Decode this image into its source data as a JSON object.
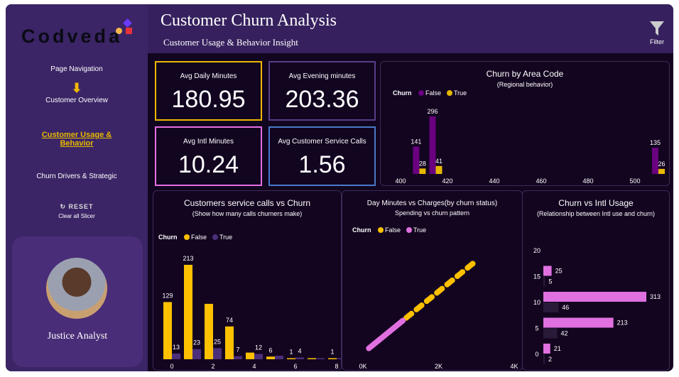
{
  "header": {
    "title": "Customer Churn Analysis",
    "subtitle": "Customer Usage & Behavior Insight",
    "filter_label": "Filter"
  },
  "sidebar": {
    "logo": "Codveda",
    "nav_heading": "Page Navigation",
    "items": [
      {
        "label": "Customer Overview"
      },
      {
        "label": "Customer Usage & Behavior",
        "active": true
      },
      {
        "label": "Churn Drivers & Strategic"
      }
    ],
    "reset_label": "RESET",
    "reset_caption": "Clear all Slicer",
    "profile_name": "Justice Analyst"
  },
  "kpis": [
    {
      "label": "Avg Daily Minutes",
      "value": "180.95",
      "color": "#f0b800"
    },
    {
      "label": "Avg Evening minutes",
      "value": "203.36",
      "color": "#5a3d8a"
    },
    {
      "label": "Avg Intl Minutes",
      "value": "10.24",
      "color": "#e36ee3"
    },
    {
      "label": "Avg Customer Service Calls",
      "value": "1.56",
      "color": "#4a7ac8"
    }
  ],
  "chart_data": [
    {
      "type": "bar",
      "title": "Churn by Area Code",
      "subtitle": "(Regional behavior)",
      "legend_title": "Churn",
      "legend": [
        "False",
        "True"
      ],
      "colors": [
        "#6a0080",
        "#e6b800"
      ],
      "xticks": [
        "400",
        "420",
        "440",
        "460",
        "480",
        "500"
      ],
      "xlim": [
        400,
        512
      ],
      "categories": [
        408,
        415,
        510
      ],
      "series": [
        {
          "name": "False",
          "values": [
            141,
            296,
            135
          ]
        },
        {
          "name": "True",
          "values": [
            28,
            41,
            26
          ]
        }
      ]
    },
    {
      "type": "bar",
      "title": "Customers service calls vs Churn",
      "subtitle": "(Show how many calls churners make)",
      "legend_title": "Churn",
      "legend": [
        "False",
        "True"
      ],
      "colors": [
        "#ffc000",
        "#4b2f7a"
      ],
      "xticks": [
        "0",
        "2",
        "4",
        "6",
        "8"
      ],
      "categories": [
        0,
        1,
        2,
        3,
        4,
        5,
        6,
        7,
        8
      ],
      "series": [
        {
          "name": "False",
          "values": [
            129,
            213,
            125,
            74,
            15,
            6,
            1,
            1,
            1
          ],
          "labels": [
            "129",
            "213",
            "",
            "74",
            "",
            "6",
            "1",
            "",
            "1"
          ]
        },
        {
          "name": "True",
          "values": [
            13,
            23,
            25,
            7,
            12,
            8,
            4,
            0,
            0
          ],
          "labels": [
            "13",
            "23",
            "25",
            "7",
            "12",
            "",
            "4",
            "",
            ""
          ]
        }
      ]
    },
    {
      "type": "scatter",
      "title": "Day Minutes vs Charges(by churn status)",
      "subtitle": "Spending vs churn pattern",
      "legend_title": "Churn",
      "legend": [
        "False",
        "True"
      ],
      "colors": [
        "#ffc000",
        "#e070e0"
      ],
      "xticks": [
        "0K",
        "2K",
        "4K"
      ],
      "xlim": [
        0,
        4000
      ],
      "series": [
        {
          "name": "True",
          "x_range": [
            100,
            1000
          ]
        },
        {
          "name": "False",
          "x_range": [
            1000,
            2900
          ]
        }
      ]
    },
    {
      "type": "bar",
      "orientation": "horizontal",
      "title": "Churn vs Intl Usage",
      "subtitle": "(Relationship between Intl use and churn)",
      "yticks": [
        "0",
        "5",
        "10",
        "15",
        "20"
      ],
      "colors": [
        "#e070e0",
        "#2a1a3a"
      ],
      "categories": [
        0,
        5,
        10,
        15
      ],
      "series": [
        {
          "name": "False",
          "values": [
            21,
            213,
            313,
            25
          ]
        },
        {
          "name": "True",
          "values": [
            2,
            42,
            46,
            5
          ]
        }
      ]
    }
  ]
}
